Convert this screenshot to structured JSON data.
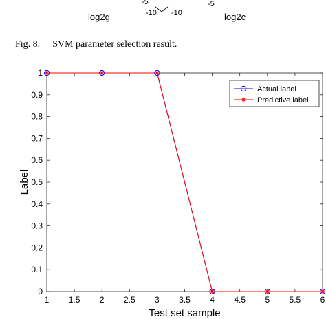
{
  "top_fragment": {
    "tick_a": "-5",
    "tick_b": "-10",
    "tick_c": "-10",
    "tick_d": "-5",
    "axis_left": "log2g",
    "axis_right": "log2c"
  },
  "caption": {
    "number": "Fig. 8.",
    "text": "SVM parameter selection result."
  },
  "chart_data": {
    "type": "line",
    "title": "",
    "xlabel": "Test set sample",
    "ylabel": "Label",
    "xlim": [
      1,
      6
    ],
    "ylim": [
      0,
      1
    ],
    "x_ticks": [
      "1",
      "1.5",
      "2",
      "2.5",
      "3",
      "3.5",
      "4",
      "4.5",
      "5",
      "5.5",
      "6"
    ],
    "y_ticks": [
      "0",
      "0.1",
      "0.2",
      "0.3",
      "0.4",
      "0.5",
      "0.6",
      "0.7",
      "0.8",
      "0.9",
      "1"
    ],
    "x": [
      1,
      2,
      3,
      4,
      5,
      6
    ],
    "series": [
      {
        "name": "Actual label",
        "values": [
          1,
          1,
          1,
          0,
          0,
          0
        ],
        "color": "#0000ff",
        "marker": "circle"
      },
      {
        "name": "Predictive label",
        "values": [
          1,
          1,
          1,
          0,
          0,
          0
        ],
        "color": "#ff0000",
        "marker": "asterisk"
      }
    ],
    "legend": "top-right",
    "grid": false
  }
}
